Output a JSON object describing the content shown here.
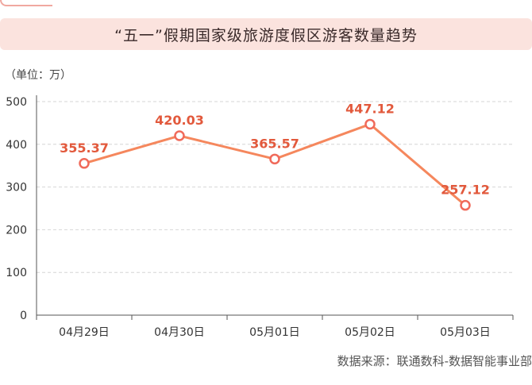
{
  "title": "“五一”假期国家级旅游度假区游客数量趋势",
  "unit_label": "（单位：万）",
  "source": "数据来源：联通数科-数据智能事业部",
  "colors": {
    "line": "#f5875d",
    "marker_stroke": "#f06a5a",
    "label": "#e2593c",
    "title_bg": "#fbe3de"
  },
  "chart_data": {
    "type": "line",
    "categories": [
      "04月29日",
      "04月30日",
      "05月01日",
      "05月02日",
      "05月03日"
    ],
    "series": [
      {
        "values": [
          355.37,
          420.03,
          365.57,
          447.12,
          257.12
        ]
      }
    ],
    "data_labels": [
      "355.37",
      "420.03",
      "365.57",
      "447.12",
      "257.12"
    ],
    "yticks": [
      0,
      100,
      200,
      300,
      400,
      500
    ],
    "ylim": [
      0,
      500
    ],
    "grid": true
  }
}
